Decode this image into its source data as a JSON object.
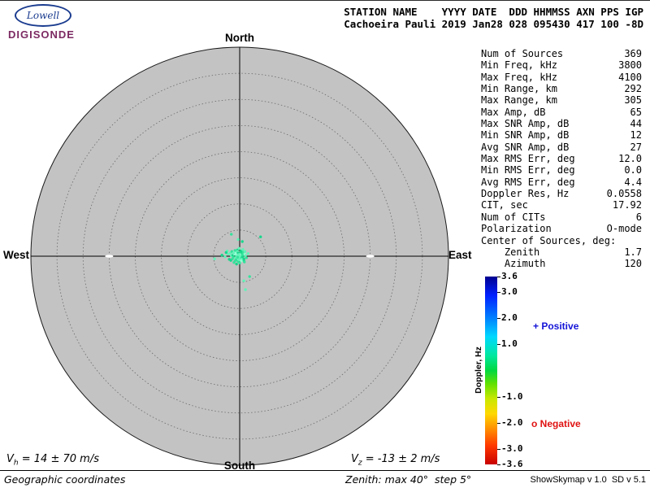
{
  "logo": {
    "name": "Lowell",
    "product": "DIGISONDE",
    "name_color": "#1b3c8f",
    "product_color": "#7c2a62"
  },
  "header": {
    "line1": "STATION NAME    YYYY DATE  DDD HHMMSS AXN PPS IGP",
    "line2": "Cachoeira Pauli 2019 Jan28 028 095430 417 100 -8D"
  },
  "compass": {
    "north": "North",
    "south": "South",
    "east": "East",
    "west": "West"
  },
  "stats": {
    "rows": [
      {
        "label": "Num of Sources",
        "value": "369"
      },
      {
        "label": "Min Freq, kHz",
        "value": "3800"
      },
      {
        "label": "Max Freq, kHz",
        "value": "4100"
      },
      {
        "label": "Min Range, km",
        "value": "292"
      },
      {
        "label": "Max Range, km",
        "value": "305"
      },
      {
        "label": "Max Amp, dB",
        "value": "65"
      },
      {
        "label": "Max SNR Amp, dB",
        "value": "44"
      },
      {
        "label": "Min SNR Amp, dB",
        "value": "12"
      },
      {
        "label": "Avg SNR Amp, dB",
        "value": "27"
      },
      {
        "label": "Max RMS Err, deg",
        "value": "12.0"
      },
      {
        "label": "Min RMS Err, deg",
        "value": "0.0"
      },
      {
        "label": "Avg RMS Err, deg",
        "value": "4.4"
      },
      {
        "label": "Doppler Res, Hz",
        "value": "0.0558"
      },
      {
        "label": "CIT, sec",
        "value": "17.92"
      },
      {
        "label": "Num of CITs",
        "value": "6"
      },
      {
        "label": "Polarization",
        "value": "O-mode"
      },
      {
        "label": "Center of Sources, deg:",
        "value": ""
      },
      {
        "label": "    Zenith",
        "value": "1.7"
      },
      {
        "label": "    Azimuth",
        "value": "120"
      }
    ]
  },
  "colorbar": {
    "title": "Doppler, Hz",
    "min": -3.6,
    "max": 3.6,
    "ticks": [
      {
        "label": "3.6",
        "value": 3.6
      },
      {
        "label": "3.0",
        "value": 3.0
      },
      {
        "label": "2.0",
        "value": 2.0
      },
      {
        "label": "1.0",
        "value": 1.0
      },
      {
        "label": "-1.0",
        "value": -1.0
      },
      {
        "label": "-2.0",
        "value": -2.0
      },
      {
        "label": "-3.0",
        "value": -3.0
      },
      {
        "label": "-3.6",
        "value": -3.6
      }
    ]
  },
  "legend": {
    "positive": "+ Positive",
    "positive_color": "#1414d8",
    "negative": "o Negative",
    "negative_color": "#e01212"
  },
  "footer": {
    "vh": {
      "base": "V",
      "sub": "h",
      "rest": " = 14 ± 70 m/s"
    },
    "vz": {
      "base": "V",
      "sub": "z",
      "rest": " = -13 ± 2 m/s"
    },
    "coordinates": "Geographic coordinates",
    "zenith_note": "Zenith: max 40°  step 5°",
    "credit": "ShowSkymap v 1.0  SD v 5.1"
  },
  "chart_data": {
    "type": "scatter",
    "projection": "polar-skymap",
    "zenith_max_deg": 40,
    "ring_step_deg": 5,
    "num_sources": 369,
    "center_of_sources_deg": {
      "zenith": 1.7,
      "azimuth": 120
    },
    "color_scale": {
      "quantity": "Doppler, Hz",
      "range": [
        -3.6,
        3.6
      ]
    },
    "plot_bg": "#c3c3c3",
    "point_colors": [
      "#35e29b",
      "#63f2b8",
      "#18d68c",
      "#98ffd6"
    ],
    "points": [
      [
        -0.2,
        0.1,
        0
      ],
      [
        0.3,
        -0.4,
        1
      ],
      [
        -0.8,
        0.3,
        2
      ],
      [
        -1.2,
        -0.2,
        0
      ],
      [
        0.1,
        0.5,
        1
      ],
      [
        -0.5,
        -0.6,
        3
      ],
      [
        0.6,
        0.2,
        2
      ],
      [
        -1.6,
        0.1,
        1
      ],
      [
        -0.3,
        -1.0,
        0
      ],
      [
        0.8,
        -0.8,
        2
      ],
      [
        -2.2,
        0.4,
        1
      ],
      [
        -1.0,
        0.8,
        3
      ],
      [
        0.2,
        -0.2,
        0
      ],
      [
        -0.6,
        0.0,
        1
      ],
      [
        0.4,
        0.7,
        2
      ],
      [
        -1.4,
        -0.5,
        0
      ],
      [
        -0.1,
        -0.7,
        1
      ],
      [
        0.9,
        0.4,
        3
      ],
      [
        -2.8,
        -0.1,
        1
      ],
      [
        -0.4,
        1.2,
        2
      ],
      [
        0.0,
        -1.3,
        0
      ],
      [
        -1.8,
        0.6,
        1
      ],
      [
        0.5,
        -0.1,
        2
      ],
      [
        -0.9,
        -0.9,
        0
      ],
      [
        1.1,
        0.1,
        1
      ],
      [
        -0.7,
        0.5,
        3
      ],
      [
        0.3,
        1.0,
        0
      ],
      [
        -1.3,
        0.2,
        2
      ],
      [
        -0.2,
        -0.4,
        1
      ],
      [
        0.7,
        0.8,
        0
      ],
      [
        -2.0,
        -0.6,
        2
      ],
      [
        -0.5,
        0.9,
        1
      ],
      [
        0.1,
        0.2,
        3
      ],
      [
        -1.1,
        -1.2,
        0
      ],
      [
        0.4,
        -0.6,
        1
      ],
      [
        -3.4,
        0.2,
        2
      ],
      [
        -0.8,
        -0.3,
        1
      ],
      [
        1.3,
        -0.3,
        0
      ],
      [
        -0.3,
        0.6,
        2
      ],
      [
        0.6,
        1.3,
        1
      ],
      [
        -1.5,
        0.9,
        0
      ],
      [
        0.0,
        0.0,
        1
      ],
      [
        -0.6,
        -1.5,
        2
      ],
      [
        0.9,
        -1.1,
        0
      ],
      [
        -2.4,
        1.0,
        1
      ],
      [
        -1.0,
        0.4,
        3
      ],
      [
        0.2,
        0.9,
        2
      ],
      [
        -0.4,
        -0.2,
        0
      ],
      [
        1.6,
        0.5,
        1
      ],
      [
        -1.7,
        -0.8,
        2
      ],
      [
        0.5,
        0.3,
        0
      ],
      [
        -0.1,
        1.5,
        1
      ],
      [
        -0.9,
        1.1,
        0
      ],
      [
        0.8,
        -0.5,
        2
      ],
      [
        -1.2,
        0.6,
        1
      ],
      [
        0.3,
        -0.9,
        3
      ],
      [
        -0.7,
        -0.7,
        0
      ],
      [
        1.0,
        0.9,
        1
      ],
      [
        -2.6,
        0.7,
        2
      ],
      [
        -0.2,
        0.3,
        1
      ],
      [
        1.1,
        -6.4,
        1
      ],
      [
        4.0,
        3.7,
        2
      ],
      [
        -4.8,
        -0.5,
        1
      ],
      [
        1.9,
        -3.9,
        0
      ],
      [
        0.5,
        2.8,
        2
      ],
      [
        -0.3,
        3.2,
        1
      ],
      [
        -1.6,
        4.2,
        0
      ],
      [
        0.8,
        -4.7,
        1
      ]
    ]
  }
}
